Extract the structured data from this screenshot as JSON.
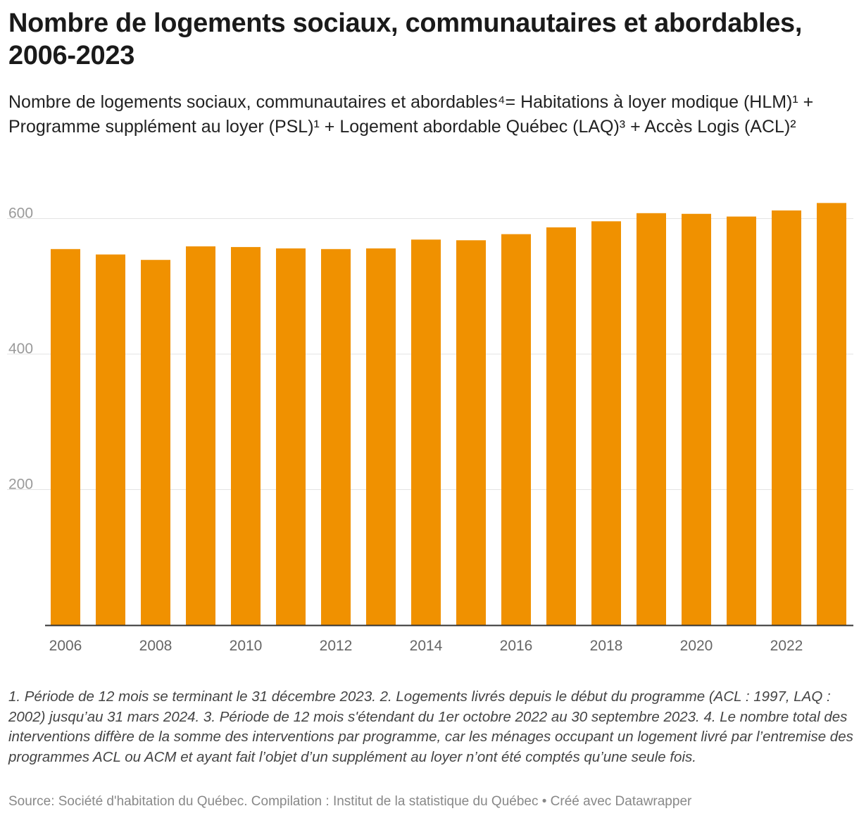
{
  "title": "Nombre de logements sociaux, communautaires et abordables, 2006-2023",
  "subtitle": "Nombre de logements sociaux, communautaires et abordables⁴= Habitations à loyer modique (HLM)¹ + Programme supplément au loyer (PSL)¹ + Logement abordable Québec (LAQ)³ + Accès Logis (ACL)²",
  "notes": "1. Période de 12 mois se terminant le 31 décembre 2023. 2. Logements livrés depuis le début du programme (ACL : 1997, LAQ : 2002) jusqu’au 31 mars 2024. 3. Période de 12 mois s'étendant du 1er octobre 2022 au 30 septembre 2023. 4. Le nombre total des interventions diffère de la somme des interventions par programme, car les ménages occupant un logement livré par l’entremise des programmes ACL ou ACM et ayant fait l’objet d’un supplément au loyer n’ont été comptés qu’une seule fois.",
  "source": "Source: Société d'habitation du Québec. Compilation : Institut de la statistique du Québec • Créé avec Datawrapper",
  "colors": {
    "bar": "#f09100",
    "grid": "#e3e3e3",
    "axis": "#333333",
    "tick": "#9a9a9a",
    "xtick": "#666666"
  },
  "chart_data": {
    "type": "bar",
    "categories": [
      "2006",
      "2007",
      "2008",
      "2009",
      "2010",
      "2011",
      "2012",
      "2013",
      "2014",
      "2015",
      "2016",
      "2017",
      "2018",
      "2019",
      "2020",
      "2021",
      "2022",
      "2023"
    ],
    "values": [
      555,
      547,
      539,
      559,
      558,
      556,
      555,
      556,
      569,
      568,
      577,
      587,
      596,
      608,
      607,
      603,
      612,
      623
    ],
    "x_tick_labels": [
      "2006",
      "2008",
      "2010",
      "2012",
      "2014",
      "2016",
      "2018",
      "2020",
      "2022"
    ],
    "y_ticks": [
      200,
      400,
      600
    ],
    "ylim": [
      0,
      650
    ],
    "grid": true,
    "xlabel": "",
    "ylabel": ""
  }
}
